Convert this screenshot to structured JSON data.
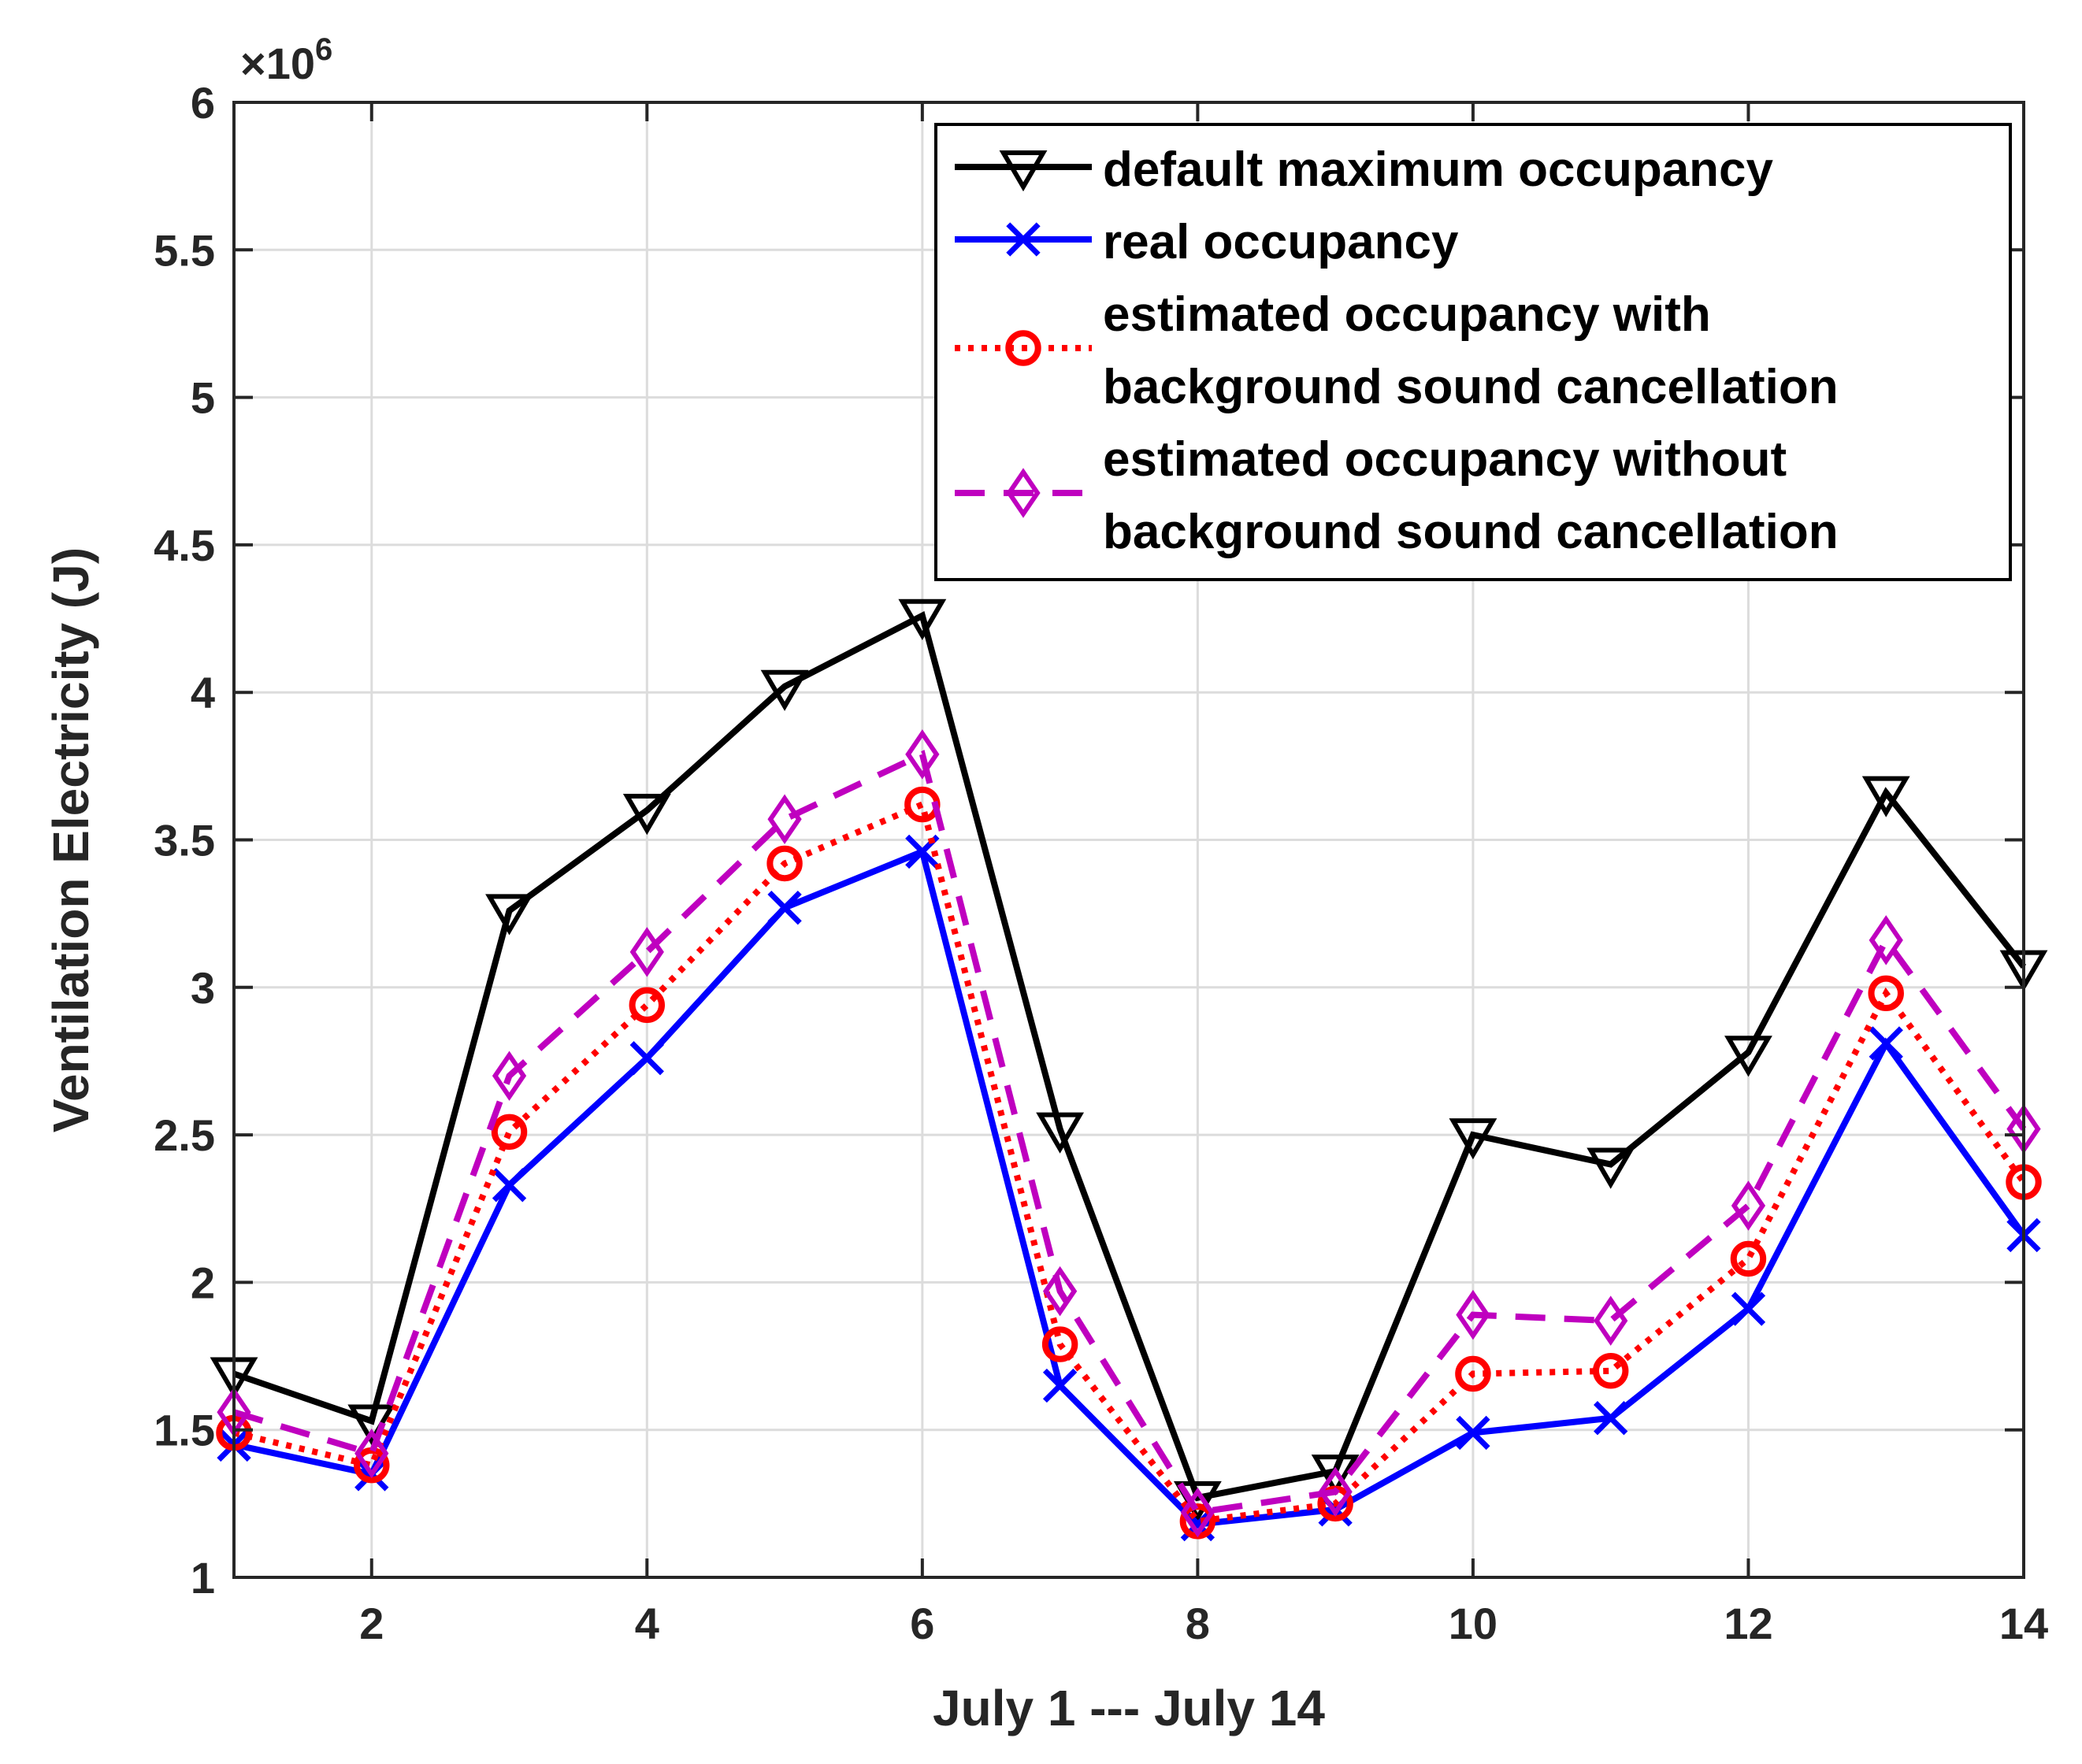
{
  "chart_data": {
    "type": "line",
    "xlabel": "July 1 --- July 14",
    "ylabel": "Ventilation Electricity (J)",
    "y_exponent_label": "×10",
    "y_exponent": "6",
    "xlim": [
      1,
      14
    ],
    "ylim": [
      1,
      6
    ],
    "x_ticks": [
      2,
      4,
      6,
      8,
      10,
      12,
      14
    ],
    "y_ticks": [
      1,
      1.5,
      2,
      2.5,
      3,
      3.5,
      4,
      4.5,
      5,
      5.5,
      6
    ],
    "grid": true,
    "legend_position": "top-right",
    "x": [
      1,
      2,
      3,
      4,
      5,
      6,
      7,
      8,
      9,
      10,
      11,
      12,
      13,
      14
    ],
    "series": [
      {
        "name": "default maximum occupancy",
        "legend_lines": [
          "default maximum occupancy"
        ],
        "color": "#000000",
        "line_style": "solid",
        "marker": "triangle-down",
        "values": [
          1.69,
          1.53,
          3.26,
          3.6,
          4.02,
          4.26,
          2.52,
          1.27,
          1.36,
          2.5,
          2.4,
          2.78,
          3.66,
          3.07
        ]
      },
      {
        "name": "real occupancy",
        "legend_lines": [
          "real occupancy"
        ],
        "color": "#0000ff",
        "line_style": "solid",
        "marker": "x",
        "values": [
          1.45,
          1.35,
          2.33,
          2.76,
          3.27,
          3.46,
          1.65,
          1.18,
          1.23,
          1.49,
          1.54,
          1.91,
          2.81,
          2.16
        ]
      },
      {
        "name": "estimated occupancy with background sound cancellation",
        "legend_lines": [
          "estimated occupancy with",
          "background sound cancellation"
        ],
        "color": "#ff0000",
        "line_style": "dotted",
        "marker": "circle",
        "values": [
          1.49,
          1.38,
          2.51,
          2.94,
          3.42,
          3.62,
          1.79,
          1.19,
          1.25,
          1.69,
          1.7,
          2.08,
          2.98,
          2.34
        ]
      },
      {
        "name": "estimated occupancy without background sound cancellation",
        "legend_lines": [
          "estimated occupancy without",
          "background sound cancellation"
        ],
        "color": "#bf00bf",
        "line_style": "dashed",
        "marker": "diamond",
        "values": [
          1.56,
          1.42,
          2.7,
          3.12,
          3.57,
          3.79,
          1.97,
          1.22,
          1.29,
          1.89,
          1.87,
          2.26,
          3.16,
          2.52
        ]
      }
    ]
  }
}
